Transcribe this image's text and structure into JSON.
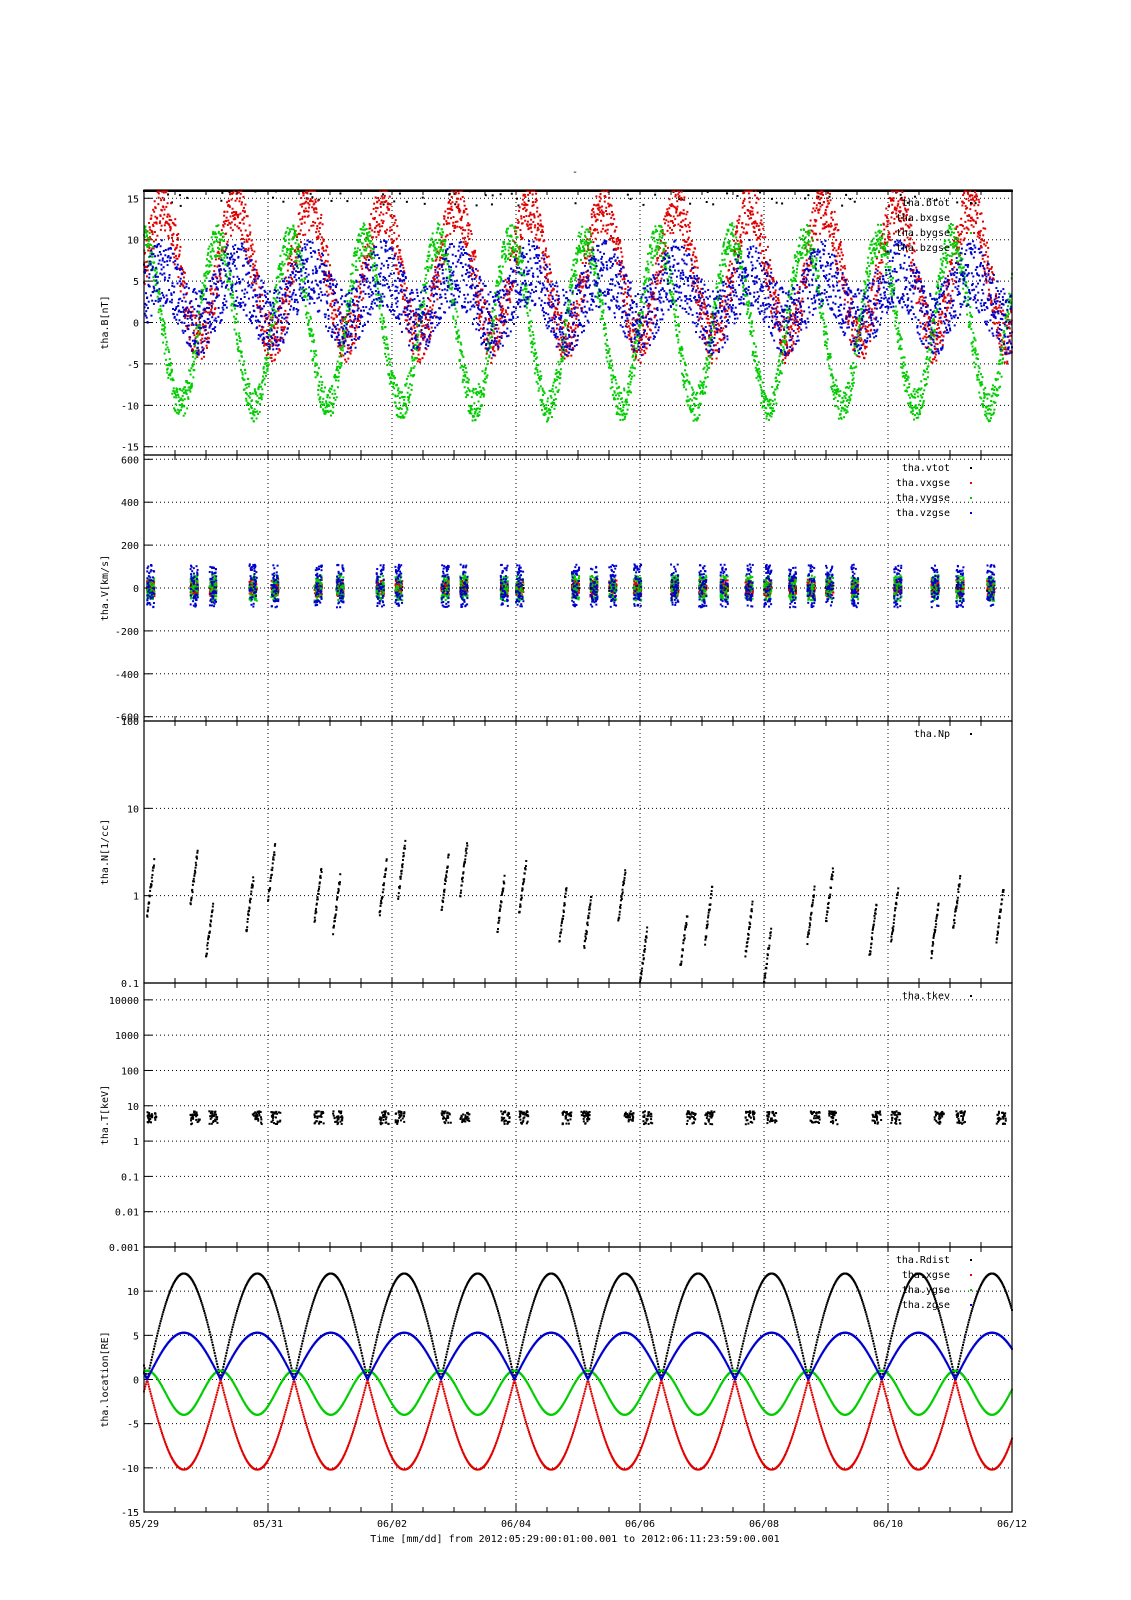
{
  "chart_data": {
    "type": "scatter",
    "title": "-",
    "xlabel": "Time [mm/dd]  from 2012:05:29:00:01:00.001  to  2012:06:11:23:59:00.001",
    "x_ticks": [
      "05/29",
      "05/31",
      "06/02",
      "06/04",
      "06/06",
      "06/08",
      "06/10",
      "06/12"
    ],
    "x_range_days": [
      0,
      14
    ],
    "grid": true,
    "panels": [
      {
        "ylabel": "tha.B[nT]",
        "ylim": [
          -16,
          16
        ],
        "yscale": "linear",
        "yticks": [
          {
            "v": 15,
            "label": "15"
          },
          {
            "v": 10,
            "label": "10"
          },
          {
            "v": 5,
            "label": "5"
          },
          {
            "v": 0,
            "label": "0"
          },
          {
            "v": -5,
            "label": "-5"
          },
          {
            "v": -10,
            "label": "-10"
          },
          {
            "v": -15,
            "label": "-15"
          }
        ],
        "legend": [
          "tha.btot",
          "tha.bxgse",
          "tha.bygse",
          "tha.bzgse"
        ],
        "series": [
          {
            "name": "tha.btot",
            "color": "#000000"
          },
          {
            "name": "tha.bxgse",
            "color": "#e00000"
          },
          {
            "name": "tha.bygse",
            "color": "#00cc00"
          },
          {
            "name": "tha.bzgse",
            "color": "#0000cc"
          }
        ]
      },
      {
        "ylabel": "tha.V[km/s]",
        "ylim": [
          -620,
          620
        ],
        "yscale": "linear",
        "yticks": [
          {
            "v": 600,
            "label": "600"
          },
          {
            "v": 400,
            "label": "400"
          },
          {
            "v": 200,
            "label": "200"
          },
          {
            "v": 0,
            "label": "0"
          },
          {
            "v": -200,
            "label": "-200"
          },
          {
            "v": -400,
            "label": "-400"
          },
          {
            "v": -600,
            "label": "-600"
          }
        ],
        "legend": [
          "tha.vtot",
          "tha.vxgse",
          "tha.vygse",
          "tha.vzgse"
        ],
        "series": [
          {
            "name": "tha.vtot",
            "color": "#000000"
          },
          {
            "name": "tha.vxgse",
            "color": "#e00000"
          },
          {
            "name": "tha.vygse",
            "color": "#00cc00"
          },
          {
            "name": "tha.vzgse",
            "color": "#0000cc"
          }
        ]
      },
      {
        "ylabel": "tha.N[1/cc]",
        "ylim": [
          0.1,
          100
        ],
        "yscale": "log",
        "yticks": [
          {
            "v": 100,
            "label": "100"
          },
          {
            "v": 10,
            "label": "10"
          },
          {
            "v": 1,
            "label": "1"
          },
          {
            "v": 0.1,
            "label": "0.1"
          }
        ],
        "legend": [
          "tha.Np"
        ],
        "series": [
          {
            "name": "tha.Np",
            "color": "#000000"
          }
        ]
      },
      {
        "ylabel": "tha.T[keV]",
        "ylim": [
          0.001,
          30000
        ],
        "yscale": "log",
        "yticks": [
          {
            "v": 10000,
            "label": "10000"
          },
          {
            "v": 1000,
            "label": "1000"
          },
          {
            "v": 100,
            "label": "100"
          },
          {
            "v": 10,
            "label": "10"
          },
          {
            "v": 1,
            "label": "1"
          },
          {
            "v": 0.1,
            "label": "0.1"
          },
          {
            "v": 0.01,
            "label": "0.01"
          },
          {
            "v": 0.001,
            "label": "0.001"
          }
        ],
        "legend": [
          "tha.tkev"
        ],
        "series": [
          {
            "name": "tha.tkev",
            "color": "#000000"
          }
        ]
      },
      {
        "ylabel": "tha.location[RE]",
        "ylim": [
          -15,
          15
        ],
        "yscale": "linear",
        "yticks": [
          {
            "v": 10,
            "label": "10"
          },
          {
            "v": 5,
            "label": "5"
          },
          {
            "v": 0,
            "label": "0"
          },
          {
            "v": -5,
            "label": "-5"
          },
          {
            "v": -10,
            "label": "-10"
          },
          {
            "v": -15,
            "label": "-15"
          }
        ],
        "legend": [
          "tha.Rdist",
          "tha.xgse",
          "tha.ygse",
          "tha.zgse"
        ],
        "series": [
          {
            "name": "tha.Rdist",
            "color": "#000000"
          },
          {
            "name": "tha.xgse",
            "color": "#e00000"
          },
          {
            "name": "tha.ygse",
            "color": "#00cc00"
          },
          {
            "name": "tha.zgse",
            "color": "#0000cc"
          }
        ]
      }
    ]
  }
}
